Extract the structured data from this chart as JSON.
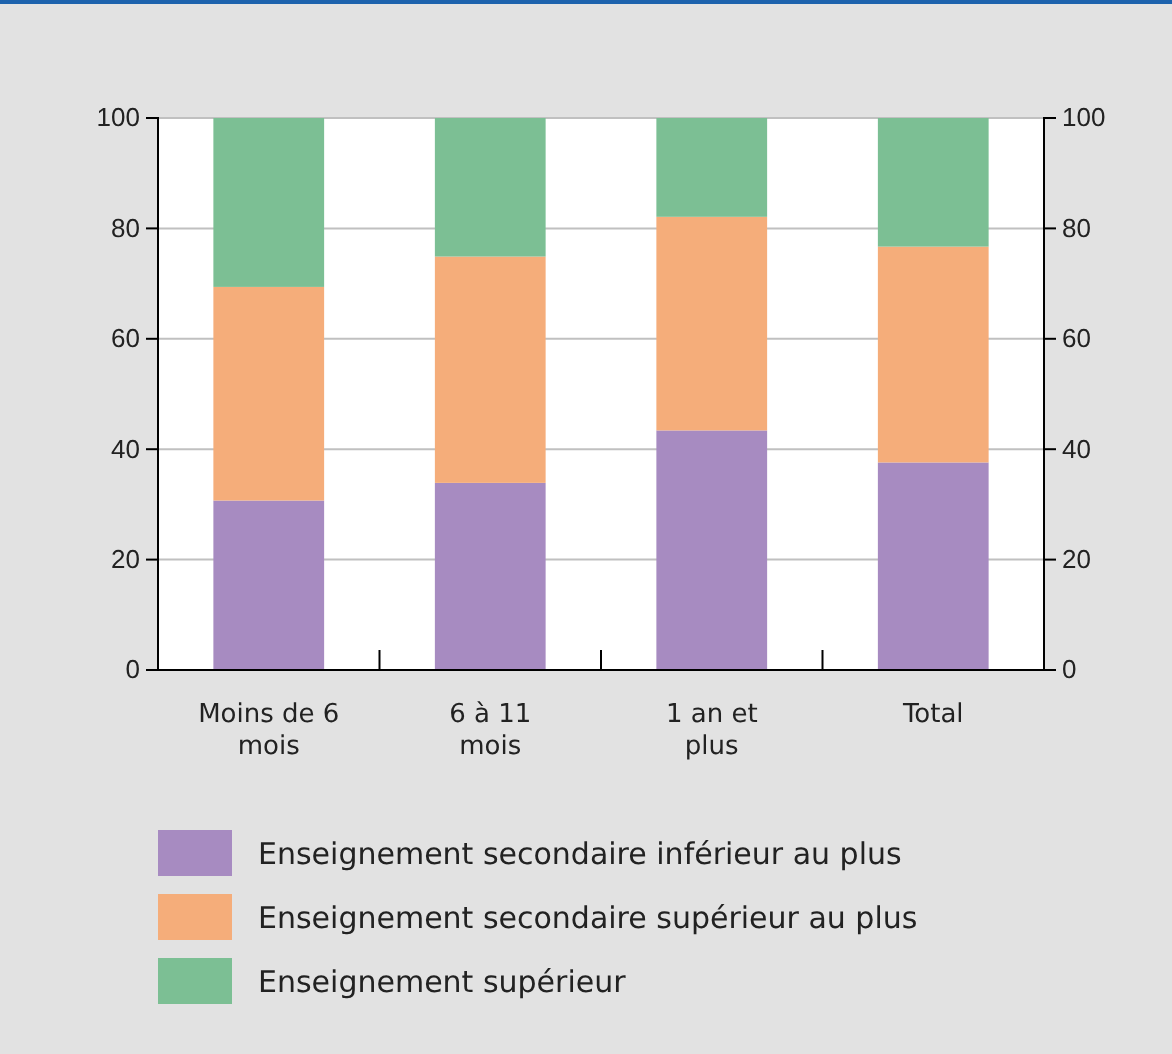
{
  "chart_data": {
    "type": "bar",
    "stacked": true,
    "categories": [
      "Moins de 6 mois",
      "6 à 11 mois",
      "1 an et plus",
      "Total"
    ],
    "series": [
      {
        "name": "Enseignement secondaire inférieur au plus",
        "color": "#a78bc1",
        "values": [
          30.7,
          33.9,
          43.4,
          37.6
        ]
      },
      {
        "name": "Enseignement secondaire supérieur au plus",
        "color": "#f5ad7a",
        "values": [
          38.7,
          41.0,
          38.7,
          39.1
        ]
      },
      {
        "name": "Enseignement supérieur",
        "color": "#7cbf94",
        "values": [
          30.6,
          25.1,
          17.9,
          23.3
        ]
      }
    ],
    "ylim": [
      0,
      100
    ],
    "yticks": [
      0,
      20,
      40,
      60,
      80,
      100
    ],
    "y2lim": [
      0,
      100
    ],
    "y2ticks": [
      0,
      20,
      40,
      60,
      80,
      100
    ],
    "grid": "y",
    "legend": "bottom"
  }
}
